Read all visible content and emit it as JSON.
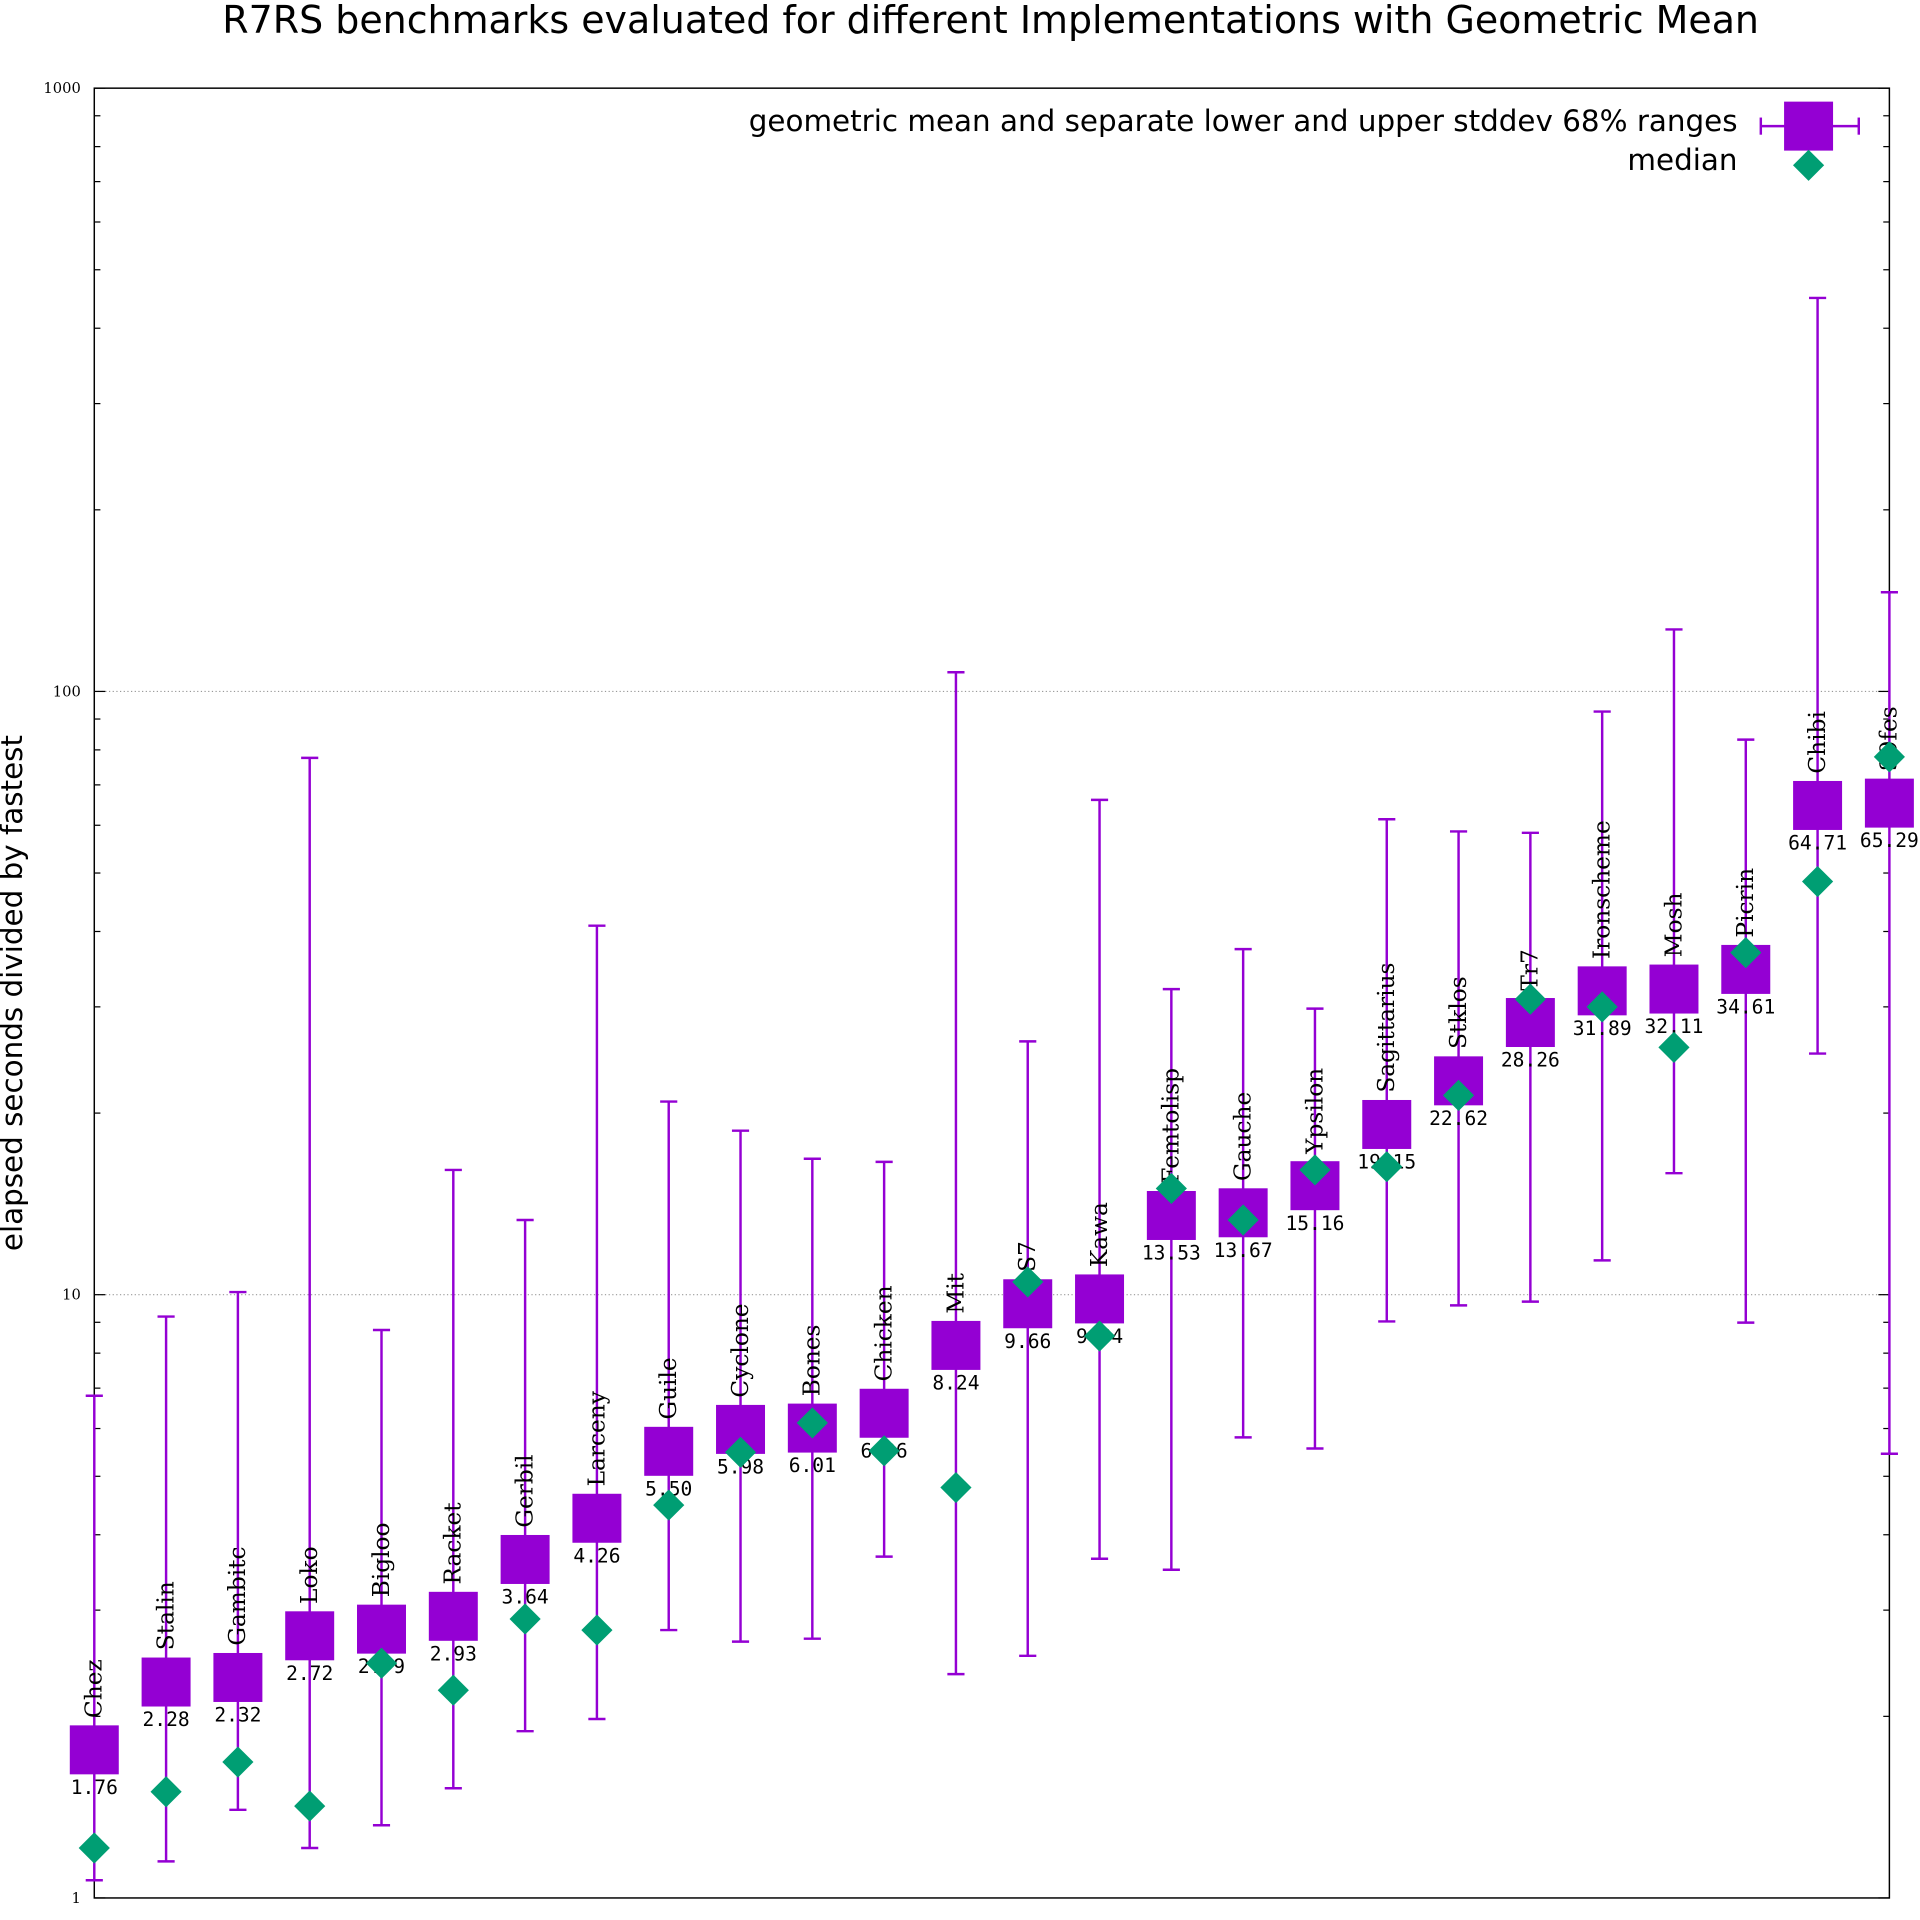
{
  "chart_data": {
    "type": "scatter",
    "title": "R7RS benchmarks evaluated for different Implementations with Geometric Mean",
    "xlabel": "",
    "ylabel": "elapsed seconds divided by fastest",
    "yscale": "log",
    "ylim": [
      1,
      1000
    ],
    "yticks": [
      "1",
      "10",
      "100",
      "1000"
    ],
    "grid": "horizontal major lines (dotted)",
    "legend_placement": "top-right",
    "legend": [
      "geometric mean and separate lower and upper stddev 68% ranges",
      "median"
    ],
    "colors": {
      "mean": "#9400d3",
      "median": "#009e73"
    },
    "series": [
      {
        "name": "geometric mean and separate lower and upper stddev 68% ranges",
        "points": [
          {
            "impl": "Chez",
            "mean": 1.76,
            "label": "1.76",
            "low": 1.07,
            "high": 6.8
          },
          {
            "impl": "Stalin",
            "mean": 2.28,
            "label": "2.28",
            "low": 1.15,
            "high": 9.2
          },
          {
            "impl": "Gambitc",
            "mean": 2.32,
            "label": "2.32",
            "low": 1.4,
            "high": 10.1
          },
          {
            "impl": "Loko",
            "mean": 2.72,
            "label": "2.72",
            "low": 1.21,
            "high": 77.6
          },
          {
            "impl": "Bigloo",
            "mean": 2.79,
            "label": "2.79",
            "low": 1.32,
            "high": 8.74
          },
          {
            "impl": "Racket",
            "mean": 2.93,
            "label": "2.93",
            "low": 1.52,
            "high": 16.1
          },
          {
            "impl": "Gerbil",
            "mean": 3.64,
            "label": "3.64",
            "low": 1.89,
            "high": 13.3
          },
          {
            "impl": "Larceny",
            "mean": 4.26,
            "label": "4.26",
            "low": 1.98,
            "high": 40.9
          },
          {
            "impl": "Guile",
            "mean": 5.5,
            "label": "5.50",
            "low": 2.78,
            "high": 20.9
          },
          {
            "impl": "Cyclone",
            "mean": 5.98,
            "label": "5.98",
            "low": 2.66,
            "high": 18.7
          },
          {
            "impl": "Bones",
            "mean": 6.01,
            "label": "6.01",
            "low": 2.69,
            "high": 16.8
          },
          {
            "impl": "Chicken",
            "mean": 6.36,
            "label": "6.36",
            "low": 3.68,
            "high": 16.6
          },
          {
            "impl": "Mit",
            "mean": 8.24,
            "label": "8.24",
            "low": 2.35,
            "high": 107.6
          },
          {
            "impl": "S7",
            "mean": 9.66,
            "label": "9.66",
            "low": 2.52,
            "high": 26.3
          },
          {
            "impl": "Kawa",
            "mean": 9.84,
            "label": "9.84",
            "low": 3.65,
            "high": 66.1
          },
          {
            "impl": "Femtolisp",
            "mean": 13.53,
            "label": "13.53",
            "low": 3.5,
            "high": 32.1
          },
          {
            "impl": "Gauche",
            "mean": 13.67,
            "label": "13.67",
            "low": 5.8,
            "high": 37.4
          },
          {
            "impl": "Ypsilon",
            "mean": 15.16,
            "label": "15.16",
            "low": 5.56,
            "high": 29.8
          },
          {
            "impl": "Sagittarius",
            "mean": 19.15,
            "label": "19.15",
            "low": 9.03,
            "high": 61.4
          },
          {
            "impl": "Stklos",
            "mean": 22.62,
            "label": "22.62",
            "low": 9.6,
            "high": 58.6
          },
          {
            "impl": "Tr7",
            "mean": 28.26,
            "label": "28.26",
            "low": 9.74,
            "high": 58.3
          },
          {
            "impl": "Ironscheme",
            "mean": 31.89,
            "label": "31.89",
            "low": 11.4,
            "high": 92.6
          },
          {
            "impl": "Mosh",
            "mean": 32.11,
            "label": "32.11",
            "low": 15.9,
            "high": 126.7
          },
          {
            "impl": "Picrin",
            "mean": 34.61,
            "label": "34.61",
            "low": 8.99,
            "high": 83.2
          },
          {
            "impl": "Chibi",
            "mean": 64.71,
            "label": "64.71",
            "low": 25.1,
            "high": 449
          },
          {
            "impl": "S9fes",
            "mean": 65.29,
            "label": "65.29",
            "low": 5.45,
            "high": 146
          }
        ]
      },
      {
        "name": "median",
        "values": [
          1.21,
          1.5,
          1.68,
          1.42,
          2.45,
          2.21,
          2.9,
          2.78,
          4.48,
          5.48,
          6.13,
          5.51,
          4.79,
          10.5,
          8.54,
          15.0,
          13.3,
          16.1,
          16.3,
          21.4,
          30.9,
          30.0,
          25.7,
          36.9,
          48.4,
          77.9
        ]
      }
    ]
  }
}
